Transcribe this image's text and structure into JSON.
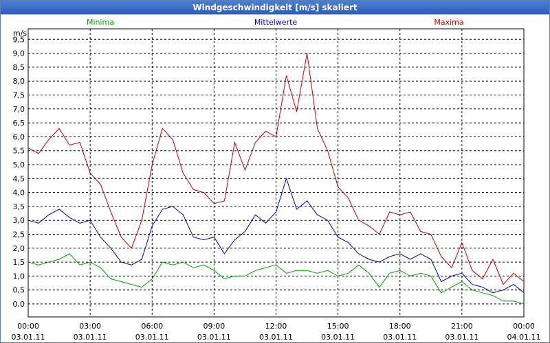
{
  "window": {
    "title": "Windgeschwindigkeit [m/s] skaliert"
  },
  "chart_data": {
    "type": "line",
    "title": "Windgeschwindigkeit [m/s] skaliert",
    "ylabel": "m/s",
    "xlabel": "",
    "ylim": [
      -0.5,
      9.75
    ],
    "xlim": [
      0,
      24
    ],
    "grid": true,
    "y_ticks": [
      "0,0",
      "0,5",
      "1,0",
      "1,5",
      "2,0",
      "2,5",
      "3,0",
      "3,5",
      "4,0",
      "4,5",
      "5,0",
      "5,5",
      "6,0",
      "6,5",
      "7,0",
      "7,5",
      "8,0",
      "8,5",
      "9,0",
      "9,5"
    ],
    "x_ticks": [
      {
        "time": "00:00",
        "date": "03.01.11"
      },
      {
        "time": "03:00",
        "date": "03.01.11"
      },
      {
        "time": "06:00",
        "date": "03.01.11"
      },
      {
        "time": "09:00",
        "date": "03.01.11"
      },
      {
        "time": "12:00",
        "date": "03.01.11"
      },
      {
        "time": "15:00",
        "date": "03.01.11"
      },
      {
        "time": "18:00",
        "date": "03.01.11"
      },
      {
        "time": "21:00",
        "date": "03.01.11"
      },
      {
        "time": "00:00",
        "date": "04.01.11"
      }
    ],
    "series": [
      {
        "name": "Minima",
        "color": "#00a000",
        "x": [
          0,
          0.5,
          1,
          1.5,
          2,
          2.5,
          3,
          3.5,
          4,
          4.5,
          5,
          5.5,
          6,
          6.5,
          7,
          7.5,
          8,
          8.5,
          9,
          9.5,
          10,
          10.5,
          11,
          11.5,
          12,
          12.5,
          13,
          13.5,
          14,
          14.5,
          15,
          15.5,
          16,
          16.5,
          17,
          17.5,
          18,
          18.5,
          19,
          19.5,
          20,
          20.5,
          21,
          21.5,
          22,
          22.5,
          23,
          23.5,
          24
        ],
        "values": [
          1.5,
          1.4,
          1.5,
          1.6,
          1.8,
          1.4,
          1.5,
          1.3,
          0.9,
          0.8,
          0.7,
          0.6,
          0.9,
          1.5,
          1.4,
          1.5,
          1.3,
          1.4,
          1.2,
          0.9,
          1.0,
          1.0,
          1.2,
          1.3,
          1.4,
          1.1,
          1.2,
          1.2,
          1.1,
          1.2,
          1.0,
          1.1,
          1.4,
          1.1,
          0.6,
          1.1,
          1.2,
          1.0,
          1.1,
          1.0,
          0.4,
          0.6,
          0.8,
          0.5,
          0.4,
          0.3,
          0.1,
          0.1,
          0.0
        ]
      },
      {
        "name": "Mittelwerte",
        "color": "#0000c0",
        "x": [
          0,
          0.5,
          1,
          1.5,
          2,
          2.5,
          3,
          3.5,
          4,
          4.5,
          5,
          5.5,
          6,
          6.5,
          7,
          7.5,
          8,
          8.5,
          9,
          9.5,
          10,
          10.5,
          11,
          11.5,
          12,
          12.5,
          13,
          13.5,
          14,
          14.5,
          15,
          15.5,
          16,
          16.5,
          17,
          17.5,
          18,
          18.5,
          19,
          19.5,
          20,
          20.5,
          21,
          21.5,
          22,
          22.5,
          23,
          23.5,
          24
        ],
        "values": [
          3.0,
          2.9,
          3.2,
          3.4,
          3.1,
          2.9,
          3.0,
          2.4,
          2.0,
          1.5,
          1.4,
          1.6,
          2.8,
          3.4,
          3.5,
          3.2,
          2.4,
          2.3,
          2.4,
          1.8,
          2.3,
          2.6,
          3.2,
          2.9,
          3.3,
          4.5,
          3.4,
          3.7,
          3.2,
          3.0,
          2.4,
          2.2,
          1.8,
          1.6,
          1.5,
          1.7,
          1.8,
          1.6,
          1.8,
          1.6,
          0.8,
          1.0,
          1.1,
          0.7,
          0.6,
          0.4,
          0.5,
          0.7,
          0.4
        ]
      },
      {
        "name": "Maxima",
        "color": "#c00000",
        "x": [
          0,
          0.5,
          1,
          1.5,
          2,
          2.5,
          3,
          3.5,
          4,
          4.5,
          5,
          5.5,
          6,
          6.5,
          7,
          7.5,
          8,
          8.5,
          9,
          9.5,
          10,
          10.5,
          11,
          11.5,
          12,
          12.5,
          13,
          13.5,
          14,
          14.5,
          15,
          15.5,
          16,
          16.5,
          17,
          17.5,
          18,
          18.5,
          19,
          19.5,
          20,
          20.5,
          21,
          21.5,
          22,
          22.5,
          23,
          23.5,
          24
        ],
        "values": [
          5.6,
          5.4,
          5.9,
          6.3,
          5.7,
          5.8,
          4.7,
          4.3,
          3.3,
          2.4,
          2.0,
          3.0,
          5.0,
          6.3,
          5.9,
          4.7,
          4.1,
          4.0,
          3.6,
          3.7,
          5.8,
          4.8,
          5.8,
          6.2,
          6.0,
          8.2,
          6.9,
          9.0,
          6.3,
          5.5,
          4.2,
          3.8,
          3.0,
          2.8,
          2.5,
          3.3,
          3.2,
          3.3,
          2.6,
          2.5,
          1.7,
          1.3,
          2.2,
          1.2,
          0.9,
          1.6,
          0.7,
          1.1,
          0.8
        ]
      }
    ]
  }
}
